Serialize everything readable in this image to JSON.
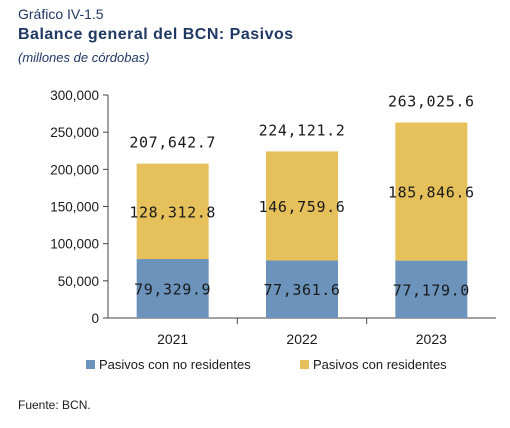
{
  "header": {
    "kicker": "Gráfico IV-1.5",
    "title": "Balance general del BCN: Pasivos",
    "subtitle": "(millones de córdobas)"
  },
  "footer": {
    "source": "Fuente: BCN."
  },
  "chart_data": {
    "type": "bar",
    "stacked": true,
    "categories": [
      "2021",
      "2022",
      "2023"
    ],
    "series": [
      {
        "name": "Pasivos con no residentes",
        "values": [
          79329.9,
          77361.6,
          77179.0
        ],
        "labels": [
          "79,329.9",
          "77,361.6",
          "77,179.0"
        ],
        "color": "#6b93bb"
      },
      {
        "name": "Pasivos con residentes",
        "values": [
          128312.8,
          146759.6,
          185846.6
        ],
        "labels": [
          "128,312.8",
          "146,759.6",
          "185,846.6"
        ],
        "color": "#e6c05a"
      }
    ],
    "totals": [
      207642.7,
      224121.2,
      263025.6
    ],
    "total_labels": [
      "207,642.7",
      "224,121.2",
      "263,025.6"
    ],
    "ylim": [
      0,
      300000
    ],
    "yticks": [
      0,
      50000,
      100000,
      150000,
      200000,
      250000,
      300000
    ],
    "ytick_labels": [
      "0",
      "50,000",
      "100,000",
      "150,000",
      "200,000",
      "250,000",
      "300,000"
    ],
    "grid": false,
    "legend": "bottom"
  }
}
